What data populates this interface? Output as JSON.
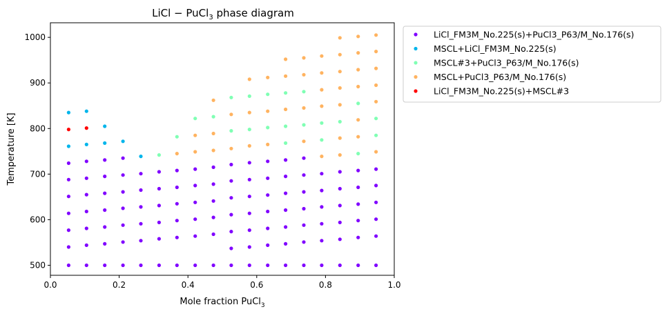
{
  "chart_data": {
    "type": "scatter",
    "title": "LiCl − PuCl",
    "title_sub": "3",
    "title_suffix": " phase diagram",
    "xlabel": "Mole fraction PuCl",
    "xlabel_sub": "3",
    "ylabel": "Temperature [K]",
    "xlim": [
      0.0,
      1.0
    ],
    "ylim": [
      478,
      1032
    ],
    "xticks": [
      0.0,
      0.2,
      0.4,
      0.6,
      0.8,
      1.0
    ],
    "xtick_labels": [
      "0.0",
      "0.2",
      "0.4",
      "0.6",
      "0.8",
      "1.0"
    ],
    "yticks": [
      500,
      600,
      700,
      800,
      900,
      1000
    ],
    "ytick_labels": [
      "500",
      "600",
      "700",
      "800",
      "900",
      "1000"
    ],
    "grid": false,
    "legend_position": "outside-top-right",
    "series": [
      {
        "name": "LiCl_FM3M_No.225(s)+PuCl3_P63/M_No.176(s)",
        "color": "#8000ff",
        "points": [
          [
            0.053,
            500
          ],
          [
            0.053,
            540
          ],
          [
            0.053,
            577
          ],
          [
            0.053,
            614
          ],
          [
            0.053,
            651
          ],
          [
            0.053,
            688
          ],
          [
            0.053,
            724
          ],
          [
            0.105,
            500
          ],
          [
            0.105,
            544
          ],
          [
            0.105,
            581
          ],
          [
            0.105,
            618
          ],
          [
            0.105,
            655
          ],
          [
            0.105,
            691
          ],
          [
            0.105,
            728
          ],
          [
            0.158,
            500
          ],
          [
            0.158,
            547
          ],
          [
            0.158,
            584
          ],
          [
            0.158,
            621
          ],
          [
            0.158,
            658
          ],
          [
            0.158,
            695
          ],
          [
            0.158,
            731
          ],
          [
            0.211,
            500
          ],
          [
            0.211,
            551
          ],
          [
            0.211,
            588
          ],
          [
            0.211,
            625
          ],
          [
            0.211,
            661
          ],
          [
            0.211,
            698
          ],
          [
            0.211,
            735
          ],
          [
            0.263,
            500
          ],
          [
            0.263,
            554
          ],
          [
            0.263,
            591
          ],
          [
            0.263,
            628
          ],
          [
            0.263,
            665
          ],
          [
            0.263,
            701
          ],
          [
            0.316,
            500
          ],
          [
            0.316,
            558
          ],
          [
            0.316,
            594
          ],
          [
            0.316,
            631
          ],
          [
            0.316,
            668
          ],
          [
            0.316,
            705
          ],
          [
            0.368,
            500
          ],
          [
            0.368,
            561
          ],
          [
            0.368,
            598
          ],
          [
            0.368,
            635
          ],
          [
            0.368,
            671
          ],
          [
            0.368,
            708
          ],
          [
            0.421,
            500
          ],
          [
            0.421,
            564
          ],
          [
            0.421,
            601
          ],
          [
            0.421,
            638
          ],
          [
            0.421,
            675
          ],
          [
            0.421,
            711
          ],
          [
            0.474,
            500
          ],
          [
            0.474,
            568
          ],
          [
            0.474,
            605
          ],
          [
            0.474,
            641
          ],
          [
            0.474,
            678
          ],
          [
            0.474,
            715
          ],
          [
            0.526,
            500
          ],
          [
            0.526,
            537
          ],
          [
            0.526,
            574
          ],
          [
            0.526,
            611
          ],
          [
            0.526,
            648
          ],
          [
            0.526,
            685
          ],
          [
            0.526,
            721
          ],
          [
            0.579,
            500
          ],
          [
            0.579,
            540
          ],
          [
            0.579,
            577
          ],
          [
            0.579,
            614
          ],
          [
            0.579,
            651
          ],
          [
            0.579,
            688
          ],
          [
            0.579,
            725
          ],
          [
            0.632,
            500
          ],
          [
            0.632,
            544
          ],
          [
            0.632,
            581
          ],
          [
            0.632,
            618
          ],
          [
            0.632,
            654
          ],
          [
            0.632,
            691
          ],
          [
            0.632,
            728
          ],
          [
            0.684,
            500
          ],
          [
            0.684,
            547
          ],
          [
            0.684,
            584
          ],
          [
            0.684,
            621
          ],
          [
            0.684,
            658
          ],
          [
            0.684,
            695
          ],
          [
            0.684,
            731
          ],
          [
            0.737,
            500
          ],
          [
            0.737,
            551
          ],
          [
            0.737,
            588
          ],
          [
            0.737,
            624
          ],
          [
            0.737,
            661
          ],
          [
            0.737,
            698
          ],
          [
            0.737,
            735
          ],
          [
            0.789,
            500
          ],
          [
            0.789,
            554
          ],
          [
            0.789,
            591
          ],
          [
            0.789,
            628
          ],
          [
            0.789,
            664
          ],
          [
            0.789,
            701
          ],
          [
            0.842,
            500
          ],
          [
            0.842,
            557
          ],
          [
            0.842,
            594
          ],
          [
            0.842,
            631
          ],
          [
            0.842,
            668
          ],
          [
            0.842,
            705
          ],
          [
            0.895,
            500
          ],
          [
            0.895,
            561
          ],
          [
            0.895,
            598
          ],
          [
            0.895,
            634
          ],
          [
            0.895,
            671
          ],
          [
            0.895,
            708
          ],
          [
            0.947,
            500
          ],
          [
            0.947,
            564
          ],
          [
            0.947,
            601
          ],
          [
            0.947,
            638
          ],
          [
            0.947,
            675
          ],
          [
            0.947,
            711
          ]
        ]
      },
      {
        "name": "MSCL+LiCl_FM3M_No.225(s)",
        "color": "#00b5eb",
        "points": [
          [
            0.053,
            761
          ],
          [
            0.053,
            835
          ],
          [
            0.105,
            765
          ],
          [
            0.105,
            838
          ],
          [
            0.158,
            768
          ],
          [
            0.158,
            805
          ],
          [
            0.211,
            772
          ],
          [
            0.263,
            739
          ]
        ]
      },
      {
        "name": "MSCL#3+PuCl3_P63/M_No.176(s)",
        "color": "#80ffb4",
        "points": [
          [
            0.316,
            742
          ],
          [
            0.368,
            782
          ],
          [
            0.421,
            822
          ],
          [
            0.474,
            826
          ],
          [
            0.526,
            795
          ],
          [
            0.526,
            868
          ],
          [
            0.579,
            798
          ],
          [
            0.579,
            871
          ],
          [
            0.632,
            802
          ],
          [
            0.632,
            875
          ],
          [
            0.684,
            768
          ],
          [
            0.684,
            805
          ],
          [
            0.684,
            878
          ],
          [
            0.737,
            808
          ],
          [
            0.737,
            881
          ],
          [
            0.789,
            775
          ],
          [
            0.789,
            812
          ],
          [
            0.842,
            815
          ],
          [
            0.895,
            745
          ],
          [
            0.895,
            855
          ],
          [
            0.947,
            785
          ],
          [
            0.947,
            822
          ]
        ]
      },
      {
        "name": "MSCL+PuCl3_P63/M_No.176(s)",
        "color": "#ffb360",
        "points": [
          [
            0.368,
            745
          ],
          [
            0.421,
            749
          ],
          [
            0.421,
            785
          ],
          [
            0.474,
            752
          ],
          [
            0.474,
            789
          ],
          [
            0.474,
            862
          ],
          [
            0.526,
            756
          ],
          [
            0.526,
            831
          ],
          [
            0.579,
            762
          ],
          [
            0.579,
            835
          ],
          [
            0.579,
            908
          ],
          [
            0.632,
            765
          ],
          [
            0.632,
            838
          ],
          [
            0.632,
            912
          ],
          [
            0.684,
            842
          ],
          [
            0.684,
            915
          ],
          [
            0.684,
            952
          ],
          [
            0.737,
            772
          ],
          [
            0.737,
            845
          ],
          [
            0.737,
            918
          ],
          [
            0.737,
            955
          ],
          [
            0.789,
            739
          ],
          [
            0.789,
            849
          ],
          [
            0.789,
            885
          ],
          [
            0.789,
            922
          ],
          [
            0.789,
            959
          ],
          [
            0.842,
            742
          ],
          [
            0.842,
            779
          ],
          [
            0.842,
            852
          ],
          [
            0.842,
            889
          ],
          [
            0.842,
            925
          ],
          [
            0.842,
            962
          ],
          [
            0.842,
            999
          ],
          [
            0.895,
            782
          ],
          [
            0.895,
            819
          ],
          [
            0.895,
            892
          ],
          [
            0.895,
            929
          ],
          [
            0.895,
            966
          ],
          [
            0.895,
            1002
          ],
          [
            0.947,
            749
          ],
          [
            0.947,
            859
          ],
          [
            0.947,
            895
          ],
          [
            0.947,
            932
          ],
          [
            0.947,
            969
          ],
          [
            0.947,
            1005
          ]
        ]
      },
      {
        "name": "LiCl_FM3M_No.225(s)+MSCL#3",
        "color": "#ff0000",
        "points": [
          [
            0.053,
            798
          ],
          [
            0.105,
            801
          ]
        ]
      }
    ]
  }
}
